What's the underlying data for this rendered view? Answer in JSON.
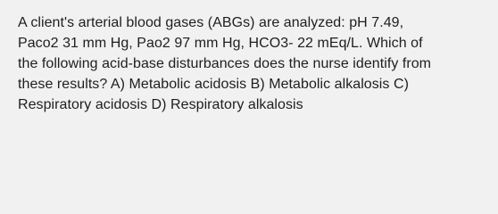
{
  "question": {
    "lines": [
      "A client's arterial blood gases (ABGs) are analyzed: pH 7.49,",
      "Paco2 31 mm Hg, Pao2 97 mm Hg, HCO3- 22 mEq/L. Which of",
      "the following acid-base disturbances does the nurse identify from",
      "these results? A) Metabolic acidosis B) Metabolic alkalosis C)",
      "Respiratory acidosis D) Respiratory alkalosis"
    ]
  }
}
